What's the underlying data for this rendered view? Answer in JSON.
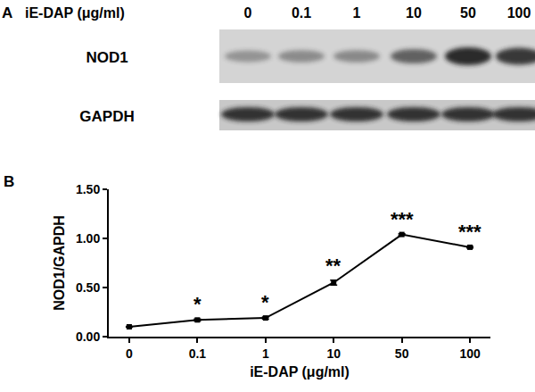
{
  "chart_data": {
    "type": "line",
    "panel_label": "B",
    "x_label": "iE-DAP (μg/ml)",
    "y_label": "NOD1/GAPDH",
    "categories": [
      "0",
      "0.1",
      "1",
      "10",
      "50",
      "100"
    ],
    "values": [
      0.1,
      0.17,
      0.19,
      0.55,
      1.04,
      0.91
    ],
    "errors": [
      0.005,
      0.01,
      0.01,
      0.025,
      0.008,
      0.008
    ],
    "color": "#000000",
    "marker": "square",
    "ylim": [
      0,
      1.5
    ],
    "yticks": [
      {
        "value": 0,
        "label": "0.00"
      },
      {
        "value": 0.5,
        "label": "0.50"
      },
      {
        "value": 1,
        "label": "1.00"
      },
      {
        "value": 1.5,
        "label": "1.50"
      }
    ],
    "grid": false,
    "annotations": [
      {
        "x": "0.1",
        "text": "*"
      },
      {
        "x": "1",
        "text": "*"
      },
      {
        "x": "10",
        "text": "**"
      },
      {
        "x": "50",
        "text": "***"
      },
      {
        "x": "100",
        "text": "***"
      }
    ]
  },
  "blot": {
    "panel_label": "A",
    "treatment_label": "iE-DAP (μg/ml)",
    "lanes": [
      "0",
      "0.1",
      "1",
      "10",
      "50",
      "100"
    ],
    "rows": [
      "NOD1",
      "GAPDH"
    ]
  }
}
